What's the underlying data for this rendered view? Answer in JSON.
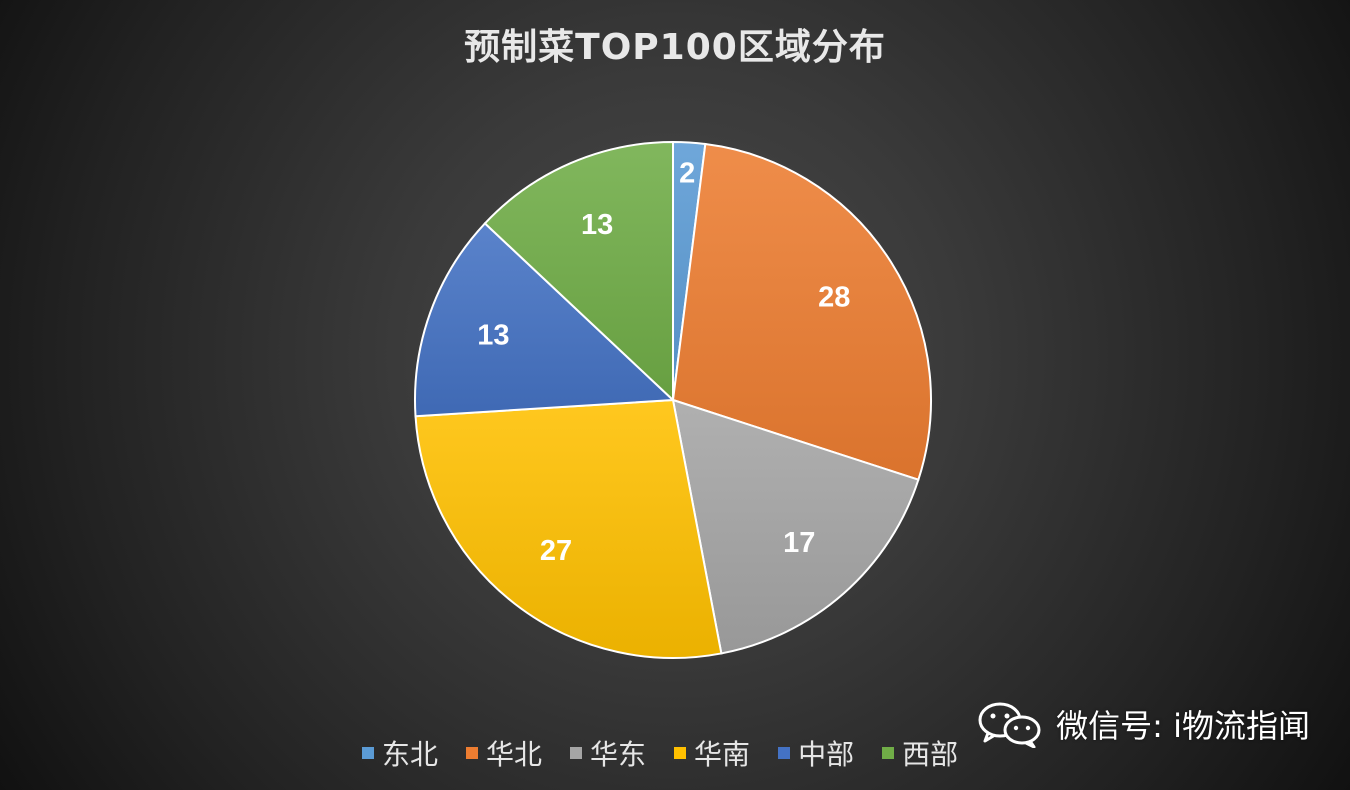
{
  "chart_data": {
    "type": "pie",
    "title": "预制菜TOP100区域分布",
    "categories": [
      "东北",
      "华北",
      "华东",
      "华南",
      "中部",
      "西部"
    ],
    "values": [
      2,
      28,
      17,
      27,
      13,
      13
    ],
    "colors": [
      "#5b9bd5",
      "#ed7d31",
      "#a5a5a5",
      "#ffc000",
      "#4472c4",
      "#70ad47"
    ],
    "legend_position": "bottom"
  },
  "watermark": {
    "icon": "wechat-icon",
    "text": "微信号: i物流指闻"
  }
}
